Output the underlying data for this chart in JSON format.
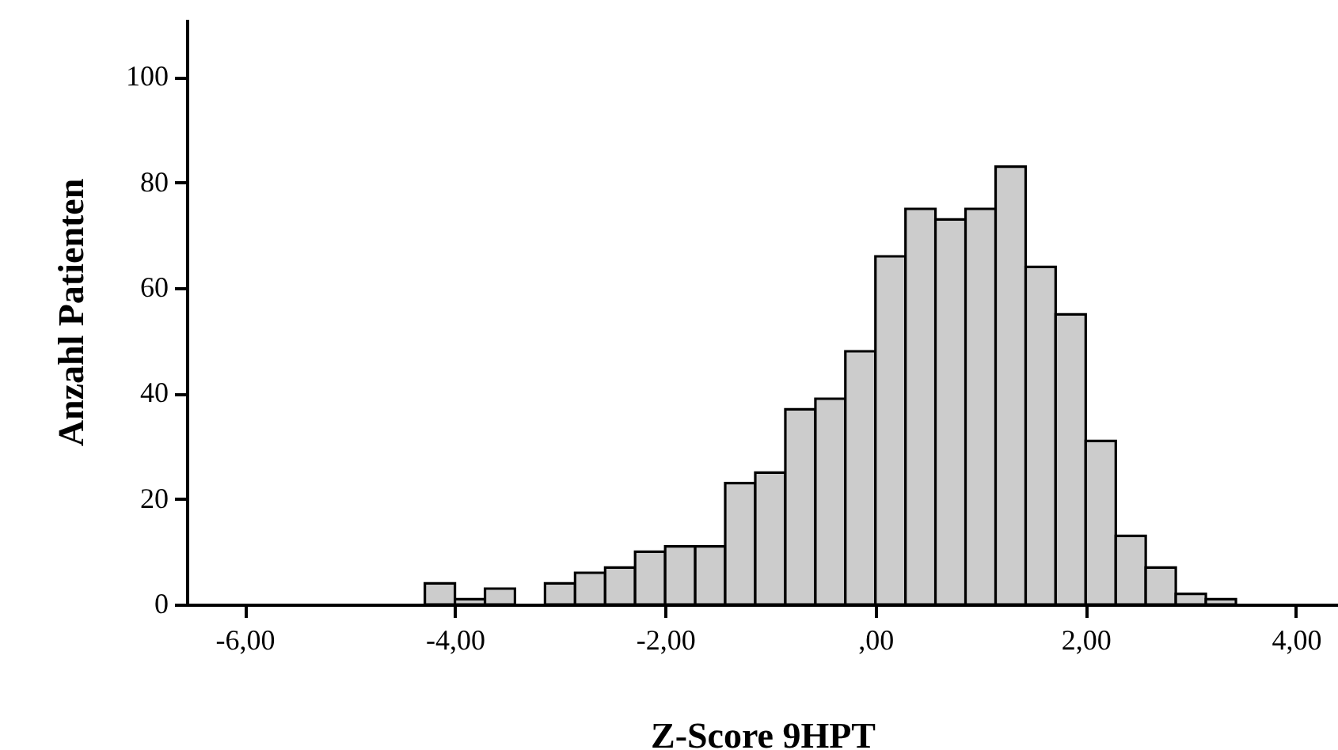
{
  "chart_data": {
    "type": "histogram",
    "xlabel": "Z-Score 9HPT",
    "ylabel": "Anzahl Patienten",
    "color": "#cccccc",
    "bins": [
      -4.286,
      -4.0,
      -3.714,
      -3.429,
      -3.143,
      -2.857,
      -2.571,
      -2.286,
      -2.0,
      -1.714,
      -1.429,
      -1.143,
      -0.857,
      -0.571,
      -0.286,
      0,
      0.286,
      0.571,
      0.857,
      1.143,
      1.429,
      1.714,
      2.0,
      2.286,
      2.571,
      2.857,
      3.143,
      3.429
    ],
    "values": [
      4,
      1,
      3,
      0,
      4,
      6,
      7,
      10,
      11,
      11,
      23,
      25,
      37,
      39,
      48,
      66,
      75,
      73,
      75,
      83,
      64,
      55,
      31,
      13,
      7,
      2,
      1
    ],
    "xlim": [
      -6.55,
      4.4
    ],
    "ylim": [
      0,
      111
    ],
    "xticks": [
      {
        "value": -6,
        "label": "-6,00"
      },
      {
        "value": -4,
        "label": "-4,00"
      },
      {
        "value": -2,
        "label": "-2,00"
      },
      {
        "value": 0,
        "label": ",00"
      },
      {
        "value": 2,
        "label": "2,00"
      },
      {
        "value": 4,
        "label": "4,00"
      }
    ],
    "yticks": [
      0,
      20,
      40,
      60,
      80,
      100
    ],
    "grid": false
  }
}
